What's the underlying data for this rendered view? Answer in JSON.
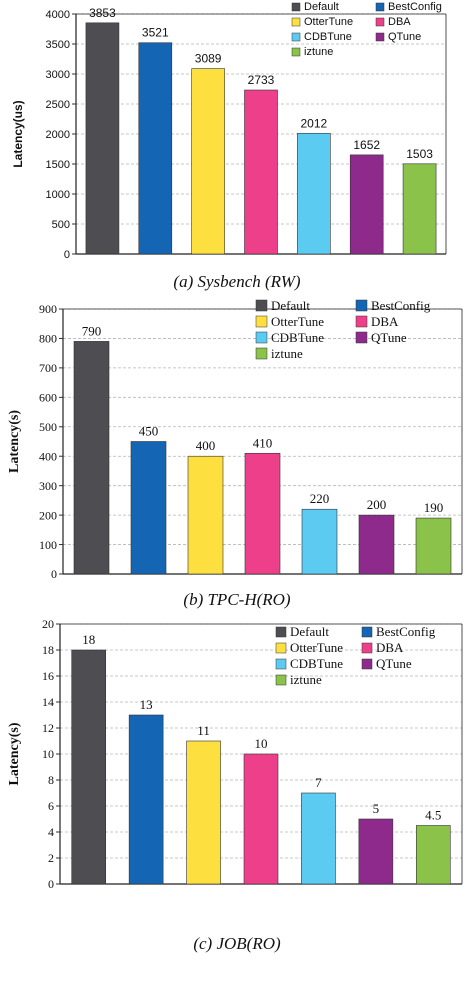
{
  "chart_data": [
    {
      "type": "bar",
      "caption": "(a)  Sysbench (RW)",
      "ylabel": "Latency(us)",
      "ylim": [
        0,
        4000
      ],
      "yticks": [
        0,
        500,
        1000,
        1500,
        2000,
        2500,
        3000,
        3500,
        4000
      ],
      "grid": true,
      "legend_position": "top-right",
      "series": [
        {
          "name": "Default",
          "value": 3853,
          "label": "3853",
          "color": "#4d4d52"
        },
        {
          "name": "BestConfig",
          "value": 3521,
          "label": "3521",
          "color": "#1565b5"
        },
        {
          "name": "OtterTune",
          "value": 3089,
          "label": "3089",
          "color": "#fde040"
        },
        {
          "name": "DBA",
          "value": 2733,
          "label": "2733",
          "color": "#ee3f8a"
        },
        {
          "name": "CDBTune",
          "value": 2012,
          "label": "2012",
          "color": "#5ccbf2"
        },
        {
          "name": "QTune",
          "value": 1652,
          "label": "1652",
          "color": "#8e2a8c"
        },
        {
          "name": "iztune",
          "value": 1503,
          "label": "1503",
          "color": "#8bc34a"
        }
      ]
    },
    {
      "type": "bar",
      "caption": "(b) TPC-H(RO)",
      "ylabel": "Latency(s)",
      "ylim": [
        0,
        900
      ],
      "yticks": [
        0,
        100,
        200,
        300,
        400,
        500,
        600,
        700,
        800,
        900
      ],
      "grid": true,
      "legend_position": "top-right",
      "series": [
        {
          "name": "Default",
          "value": 790,
          "label": "790",
          "color": "#4d4d52"
        },
        {
          "name": "BestConfig",
          "value": 450,
          "label": "450",
          "color": "#1565b5"
        },
        {
          "name": "OtterTune",
          "value": 400,
          "label": "400",
          "color": "#fde040"
        },
        {
          "name": "DBA",
          "value": 410,
          "label": "410",
          "color": "#ee3f8a"
        },
        {
          "name": "CDBTune",
          "value": 220,
          "label": "220",
          "color": "#5ccbf2"
        },
        {
          "name": "QTune",
          "value": 200,
          "label": "200",
          "color": "#8e2a8c"
        },
        {
          "name": "iztune",
          "value": 190,
          "label": "190",
          "color": "#8bc34a"
        }
      ]
    },
    {
      "type": "bar",
      "caption": "(c) JOB(RO)",
      "ylabel": "Latency(s)",
      "ylim": [
        0,
        20
      ],
      "yticks": [
        0,
        2,
        4,
        6,
        8,
        10,
        12,
        14,
        16,
        18,
        20
      ],
      "grid": true,
      "legend_position": "top-right",
      "series": [
        {
          "name": "Default",
          "value": 18,
          "label": "18",
          "color": "#4d4d52"
        },
        {
          "name": "BestConfig",
          "value": 13,
          "label": "13",
          "color": "#1565b5"
        },
        {
          "name": "OtterTune",
          "value": 11,
          "label": "11",
          "color": "#fde040"
        },
        {
          "name": "DBA",
          "value": 10,
          "label": "10",
          "color": "#ee3f8a"
        },
        {
          "name": "CDBTune",
          "value": 7,
          "label": "7",
          "color": "#5ccbf2"
        },
        {
          "name": "QTune",
          "value": 5,
          "label": "5",
          "color": "#8e2a8c"
        },
        {
          "name": "iztune",
          "value": 4.5,
          "label": "4.5",
          "color": "#8bc34a"
        }
      ]
    }
  ]
}
